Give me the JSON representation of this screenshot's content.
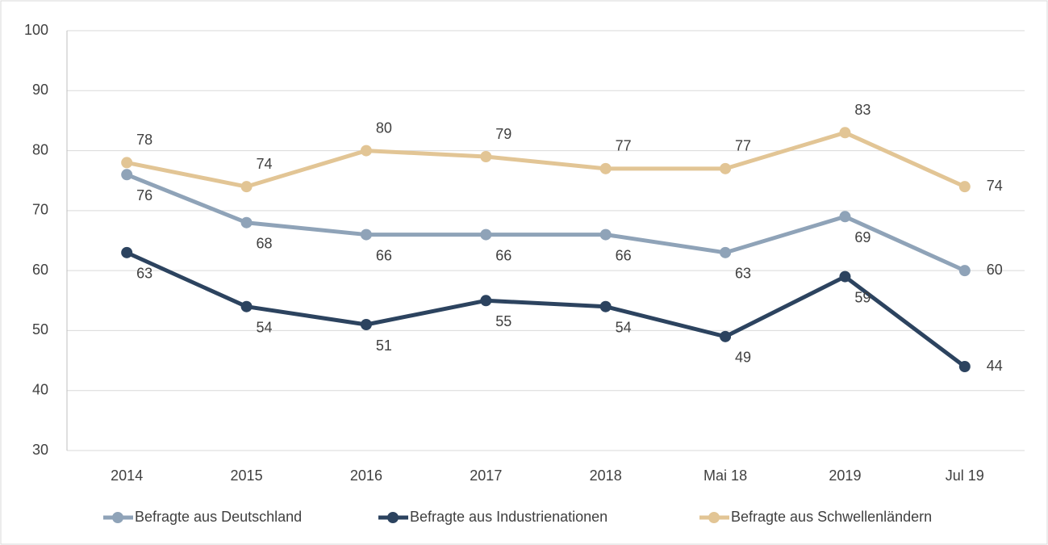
{
  "chart_data": {
    "type": "line",
    "categories": [
      "2014",
      "2015",
      "2016",
      "2017",
      "2018",
      "Mai 18",
      "2019",
      "Jul 19"
    ],
    "series": [
      {
        "name": "Befragte aus Deutschland",
        "color": "#8fa3b8",
        "values": [
          76,
          68,
          66,
          66,
          66,
          63,
          69,
          60
        ]
      },
      {
        "name": "Befragte aus Industrienationen",
        "color": "#2c435f",
        "values": [
          63,
          54,
          51,
          55,
          54,
          49,
          59,
          44
        ]
      },
      {
        "name": "Befragte aus Schwellenländern",
        "color": "#e2c595",
        "values": [
          78,
          74,
          80,
          79,
          77,
          77,
          83,
          74
        ]
      }
    ],
    "ylim": [
      30,
      100
    ],
    "yticks": [
      30,
      40,
      50,
      60,
      70,
      80,
      90,
      100
    ],
    "grid": true,
    "legend": "bottom"
  }
}
